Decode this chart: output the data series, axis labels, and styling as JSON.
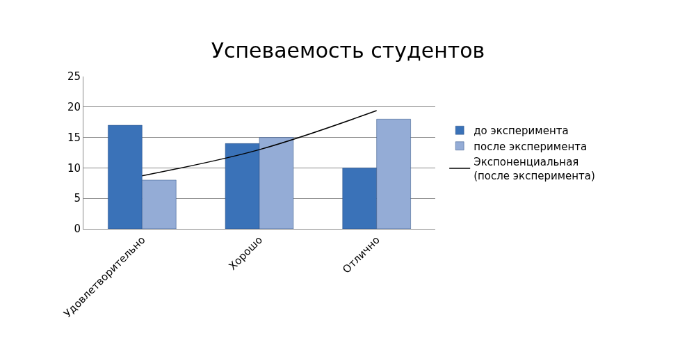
{
  "chart_data": {
    "type": "bar",
    "title": "Успеваемость студентов",
    "categories": [
      "Удовлетворительно",
      "Хорошо",
      "Отлично"
    ],
    "series": [
      {
        "name": "до эксперимента",
        "color": "#3a72b8",
        "values": [
          17,
          14,
          10
        ]
      },
      {
        "name": "после эксперимента",
        "color": "#94acd6",
        "values": [
          8,
          15,
          18
        ]
      },
      {
        "name": "Экспоненциальная\n(после эксперимента)",
        "type": "line",
        "color": "#000000",
        "x": [
          "Удовлетворительно",
          "Хорошо",
          "Отлично"
        ],
        "values": [
          8.7,
          13,
          19.4
        ]
      }
    ],
    "ylim": [
      0,
      25
    ],
    "yticks": [
      0,
      5,
      10,
      15,
      20,
      25
    ],
    "grid": "y",
    "legend": "right",
    "marker": "none",
    "line_style": "solid"
  }
}
